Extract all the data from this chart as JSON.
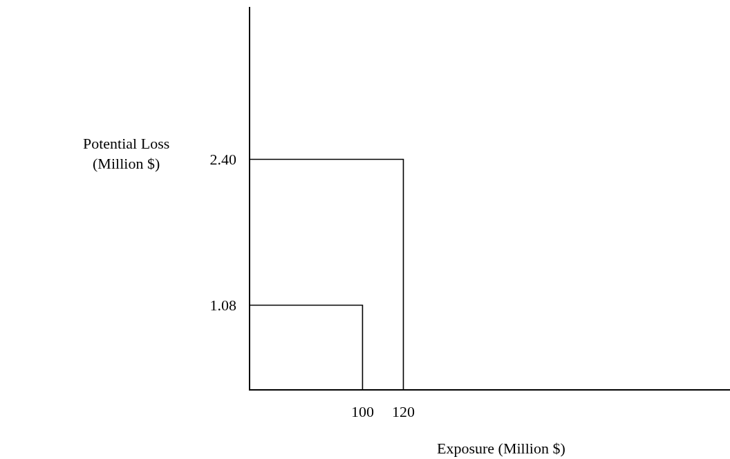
{
  "chart_data": {
    "type": "line",
    "xlabel": "Exposure (Million $)",
    "ylabel": "Potential Loss\n(Million $)",
    "series": [
      {
        "color": "#000000",
        "x": [
          45,
          100,
          100
        ],
        "values": [
          1.08,
          1.08,
          0.32
        ]
      },
      {
        "color": "#000000",
        "x": [
          45,
          120,
          120
        ],
        "values": [
          2.4,
          2.4,
          0.32
        ]
      }
    ],
    "xlim": [
      45,
      280
    ],
    "ylim": [
      0.32,
      3.78
    ],
    "xticks": [
      100,
      120
    ],
    "yticks": [
      1.08,
      {
        "value": 2.4,
        "label": "2.40"
      }
    ],
    "grid": false,
    "marker": "none",
    "line_style": "solid"
  }
}
